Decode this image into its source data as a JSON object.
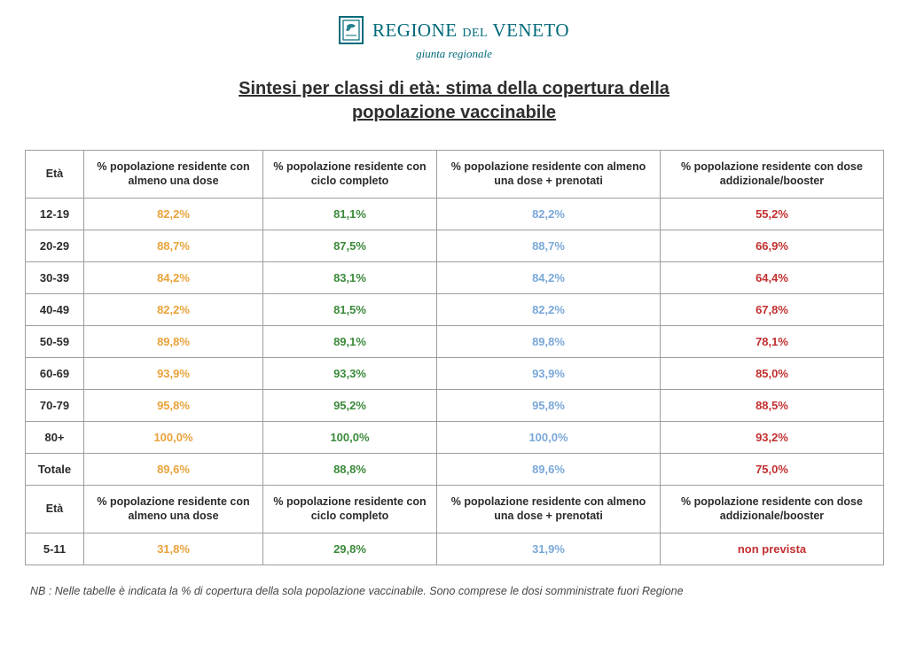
{
  "brand": {
    "line1_a": "REGIONE ",
    "line1_small": "DEL",
    "line1_b": " VENETO",
    "sub": "giunta regionale"
  },
  "title_line1": "Sintesi per classi di età: stima della copertura della",
  "title_line2": "popolazione vaccinabile",
  "columns": {
    "age": "Età",
    "c1": "% popolazione residente con almeno una dose",
    "c2": "% popolazione residente con ciclo completo",
    "c3": "% popolazione residente con almeno una dose + prenotati",
    "c4": "% popolazione residente con dose addizionale/booster"
  },
  "colors": {
    "c1": "#e8a23a",
    "c2": "#3b8a3b",
    "c3": "#7aa8d8",
    "c4": "#c23030",
    "border": "#9e9e9e",
    "brand": "#006a7a",
    "text": "#2b2b2b",
    "background": "#ffffff"
  },
  "rows_main": [
    {
      "age": "12-19",
      "c1": "82,2%",
      "c2": "81,1%",
      "c3": "82,2%",
      "c4": "55,2%"
    },
    {
      "age": "20-29",
      "c1": "88,7%",
      "c2": "87,5%",
      "c3": "88,7%",
      "c4": "66,9%"
    },
    {
      "age": "30-39",
      "c1": "84,2%",
      "c2": "83,1%",
      "c3": "84,2%",
      "c4": "64,4%"
    },
    {
      "age": "40-49",
      "c1": "82,2%",
      "c2": "81,5%",
      "c3": "82,2%",
      "c4": "67,8%"
    },
    {
      "age": "50-59",
      "c1": "89,8%",
      "c2": "89,1%",
      "c3": "89,8%",
      "c4": "78,1%"
    },
    {
      "age": "60-69",
      "c1": "93,9%",
      "c2": "93,3%",
      "c3": "93,9%",
      "c4": "85,0%"
    },
    {
      "age": "70-79",
      "c1": "95,8%",
      "c2": "95,2%",
      "c3": "95,8%",
      "c4": "88,5%"
    },
    {
      "age": "80+",
      "c1": "100,0%",
      "c2": "100,0%",
      "c3": "100,0%",
      "c4": "93,2%"
    },
    {
      "age": "Totale",
      "c1": "89,6%",
      "c2": "88,8%",
      "c3": "89,6%",
      "c4": "75,0%"
    }
  ],
  "rows_extra": [
    {
      "age": "5-11",
      "c1": "31,8%",
      "c2": "29,8%",
      "c3": "31,9%",
      "c4": "non prevista"
    }
  ],
  "footnote": "NB : Nelle tabelle è indicata la % di copertura della sola popolazione vaccinabile. Sono comprese le dosi somministrate fuori Regione"
}
